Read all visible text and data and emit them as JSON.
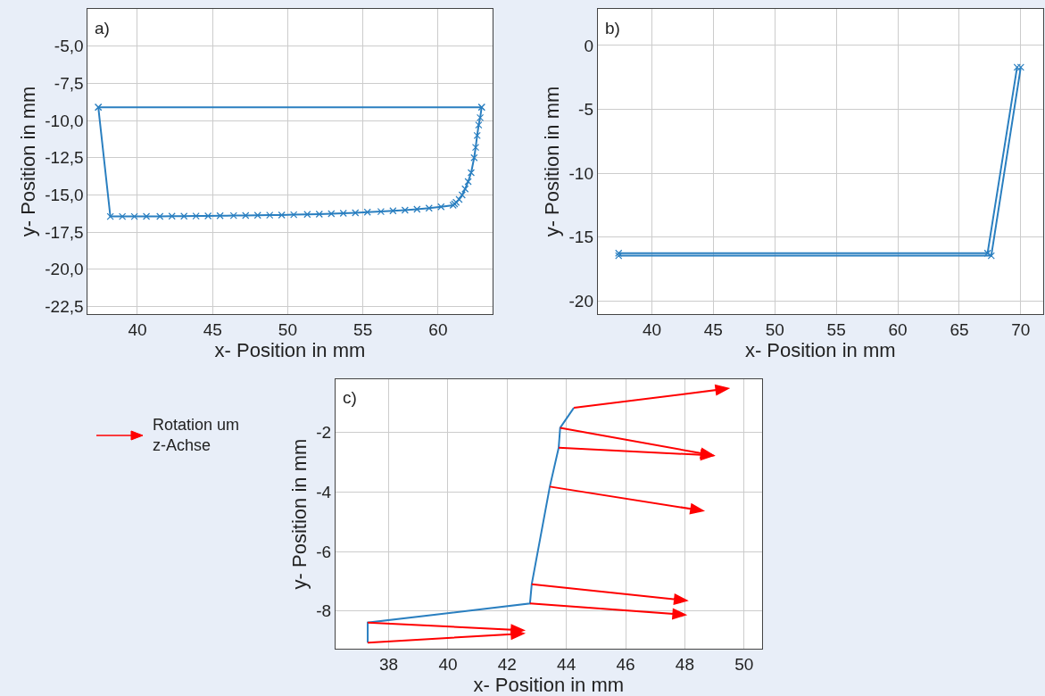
{
  "chart_data": [
    {
      "type": "line",
      "xlabel": "x- Position in mm",
      "ylabel": "y- Position in mm",
      "annotations": [
        "a)"
      ],
      "grid": true,
      "marker": "cross",
      "xlim": [
        36.7,
        63.6
      ],
      "ylim": [
        -23.0,
        -2.5
      ],
      "xticks": [
        40,
        45,
        50,
        55,
        60
      ],
      "yticks": [
        {
          "value": -5,
          "label": "-5,0"
        },
        {
          "value": -7.5,
          "label": "-7,5"
        },
        {
          "value": -10,
          "label": "-10,0"
        },
        {
          "value": -12.5,
          "label": "-12,5"
        },
        {
          "value": -15,
          "label": "-15,0"
        },
        {
          "value": -17.5,
          "label": "-17,5"
        },
        {
          "value": -20,
          "label": "-20,0"
        },
        {
          "value": -22.5,
          "label": "-22,5"
        }
      ],
      "series": [
        {
          "color": "#2a7fc0",
          "x": [
            37.4,
            62.9
          ],
          "values": [
            -9.1,
            -9.1
          ]
        },
        {
          "color": "#2a7fc0",
          "x": [
            37.4,
            38.2,
            39.0,
            39.8,
            40.6,
            41.5,
            42.3,
            43.1,
            43.9,
            44.7,
            45.5,
            46.4,
            47.2,
            48.0,
            48.8,
            49.6,
            50.4,
            51.3,
            52.1,
            52.9,
            53.7,
            54.5,
            55.3,
            56.2,
            57.0,
            57.8,
            58.6,
            59.4,
            60.2,
            61.0,
            61.1,
            61.2,
            61.4,
            61.6,
            61.8,
            62.0,
            62.2,
            62.4,
            62.5,
            62.6,
            62.7,
            62.8,
            62.9
          ],
          "values": [
            -9.1,
            -16.45,
            -16.45,
            -16.45,
            -16.44,
            -16.44,
            -16.43,
            -16.43,
            -16.42,
            -16.41,
            -16.4,
            -16.39,
            -16.38,
            -16.37,
            -16.36,
            -16.35,
            -16.33,
            -16.31,
            -16.29,
            -16.26,
            -16.23,
            -16.2,
            -16.16,
            -16.12,
            -16.07,
            -16.02,
            -15.96,
            -15.89,
            -15.8,
            -15.69,
            -15.6,
            -15.5,
            -15.3,
            -15.0,
            -14.6,
            -14.1,
            -13.5,
            -12.5,
            -11.8,
            -11.0,
            -10.3,
            -9.8,
            -9.1
          ]
        }
      ]
    },
    {
      "type": "line",
      "xlabel": "x- Position in mm",
      "ylabel": "y- Position in mm",
      "annotations": [
        "b)"
      ],
      "grid": true,
      "marker": "cross",
      "xlim": [
        35.6,
        71.8
      ],
      "ylim": [
        -21.0,
        2.85
      ],
      "xticks": [
        40,
        45,
        50,
        55,
        60,
        65,
        70
      ],
      "yticks": [
        0,
        -5,
        -10,
        -15,
        -20
      ],
      "series": [
        {
          "color": "#2a7fc0",
          "x": [
            37.3,
            67.3,
            69.7
          ],
          "values": [
            -16.25,
            -16.25,
            -1.7
          ]
        },
        {
          "color": "#2a7fc0",
          "x": [
            37.3,
            67.6,
            70.0
          ],
          "values": [
            -16.45,
            -16.45,
            -1.7
          ]
        }
      ]
    },
    {
      "type": "line",
      "xlabel": "x- Position in mm",
      "ylabel": "y- Position in mm",
      "annotations": [
        "c)",
        "Rotation um z-Achse"
      ],
      "grid": true,
      "xlim": [
        36.2,
        50.6
      ],
      "ylim": [
        -9.27,
        -0.21
      ],
      "xticks": [
        38,
        40,
        42,
        44,
        46,
        48,
        50
      ],
      "yticks": [
        -2,
        -4,
        -6,
        -8
      ],
      "series": [
        {
          "color": "#2a7fc0",
          "x": [
            37.29,
            37.29,
            42.77,
            42.83,
            43.44,
            43.74,
            43.79,
            44.25
          ],
          "values": [
            -9.07,
            -8.39,
            -7.75,
            -7.1,
            -3.82,
            -2.51,
            -1.84,
            -1.17
          ]
        }
      ]
    }
  ]
}
